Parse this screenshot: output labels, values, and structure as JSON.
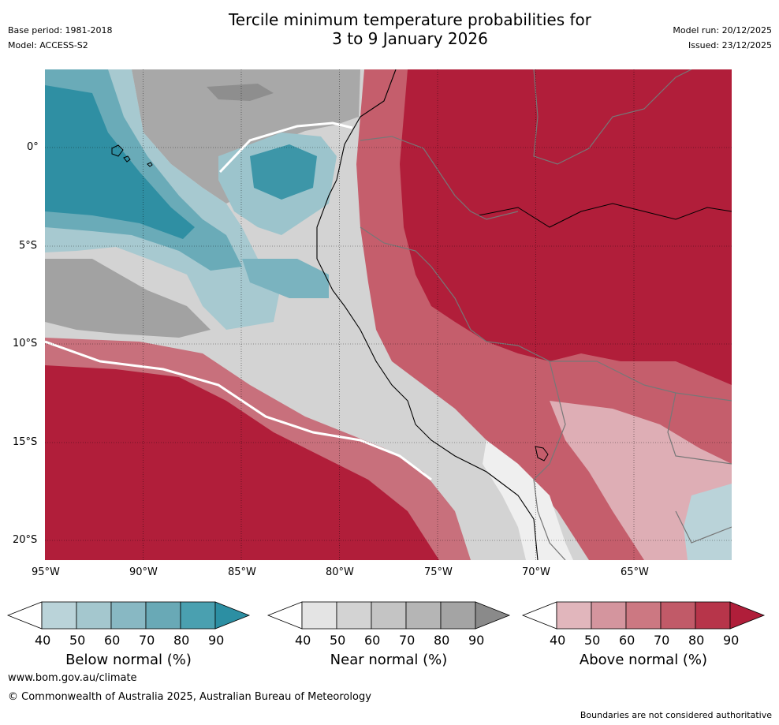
{
  "header": {
    "base_period": "Base period: 1981-2018",
    "model": "Model: ACCESS-S2",
    "title_line1": "Tercile minimum temperature probabilities for",
    "title_line2": "3 to 9 January 2026",
    "model_run": "Model run: 20/12/2025",
    "issued": "Issued: 23/12/2025"
  },
  "map": {
    "lon_labels": [
      "95°W",
      "90°W",
      "85°W",
      "80°W",
      "75°W",
      "70°W",
      "65°W"
    ],
    "lat_labels": [
      "0°",
      "5°S",
      "10°S",
      "15°S",
      "20°S"
    ]
  },
  "legend": {
    "below": {
      "title": "Below normal (%)",
      "ticks": [
        "40",
        "50",
        "60",
        "70",
        "80",
        "90"
      ],
      "colors": [
        "#ffffff",
        "#bad3d9",
        "#a4c7ce",
        "#88b8c3",
        "#69a9b6",
        "#4aa0b0",
        "#2c8fa3"
      ]
    },
    "near": {
      "title": "Near normal (%)",
      "ticks": [
        "40",
        "50",
        "60",
        "70",
        "80",
        "90"
      ],
      "colors": [
        "#ffffff",
        "#e4e4e4",
        "#d3d3d3",
        "#c4c4c4",
        "#b5b5b5",
        "#a4a4a4",
        "#8a8a8a"
      ]
    },
    "above": {
      "title": "Above normal (%)",
      "ticks": [
        "40",
        "50",
        "60",
        "70",
        "80",
        "90"
      ],
      "colors": [
        "#ffffff",
        "#e1b6bc",
        "#d4959e",
        "#cc7882",
        "#c15a68",
        "#b7354a",
        "#b01e3a"
      ]
    }
  },
  "footer": {
    "website": "www.bom.gov.au/climate",
    "copyright": "© Commonwealth of Australia 2025, Australian Bureau of Meteorology",
    "disclaimer": "Boundaries are not considered authoritative"
  }
}
